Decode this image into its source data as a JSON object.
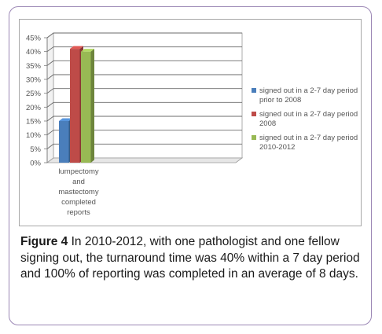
{
  "chart_data": {
    "type": "bar",
    "style": "3d-clustered-column",
    "categories": [
      "lumpectomy and mastectomy completed reports"
    ],
    "category_lines": [
      "lumpectomy",
      "and",
      "mastectomy",
      "completed",
      "reports"
    ],
    "yticks": [
      "45%",
      "40%",
      "35%",
      "30%",
      "25%",
      "20%",
      "15%",
      "10%",
      "5%",
      "0%"
    ],
    "ylim": [
      0,
      45
    ],
    "grid": true,
    "legend_position": "right",
    "series": [
      {
        "name": "signed out in a 2-7 day period prior to 2008",
        "name_lines": [
          "signed out in a 2-7 day period",
          "prior to 2008"
        ],
        "values": [
          15
        ],
        "color": "#4a7ebb"
      },
      {
        "name": "signed out in a 2-7 day period 2008",
        "name_lines": [
          "signed out in a 2-7 day period",
          "2008"
        ],
        "values": [
          41
        ],
        "color": "#be4b48"
      },
      {
        "name": "signed out in a 2-7 day period 2010-2012",
        "name_lines": [
          "signed out in a 2-7 day period",
          "2010-2012"
        ],
        "values": [
          40
        ],
        "color": "#98b954"
      }
    ]
  },
  "caption": {
    "label": "Figure 4",
    "text": " In 2010-2012, with one pathologist and one fellow signing out, the turnaround time was 40% within a 7 day period and 100% of reporting was completed in an average of 8 days."
  }
}
